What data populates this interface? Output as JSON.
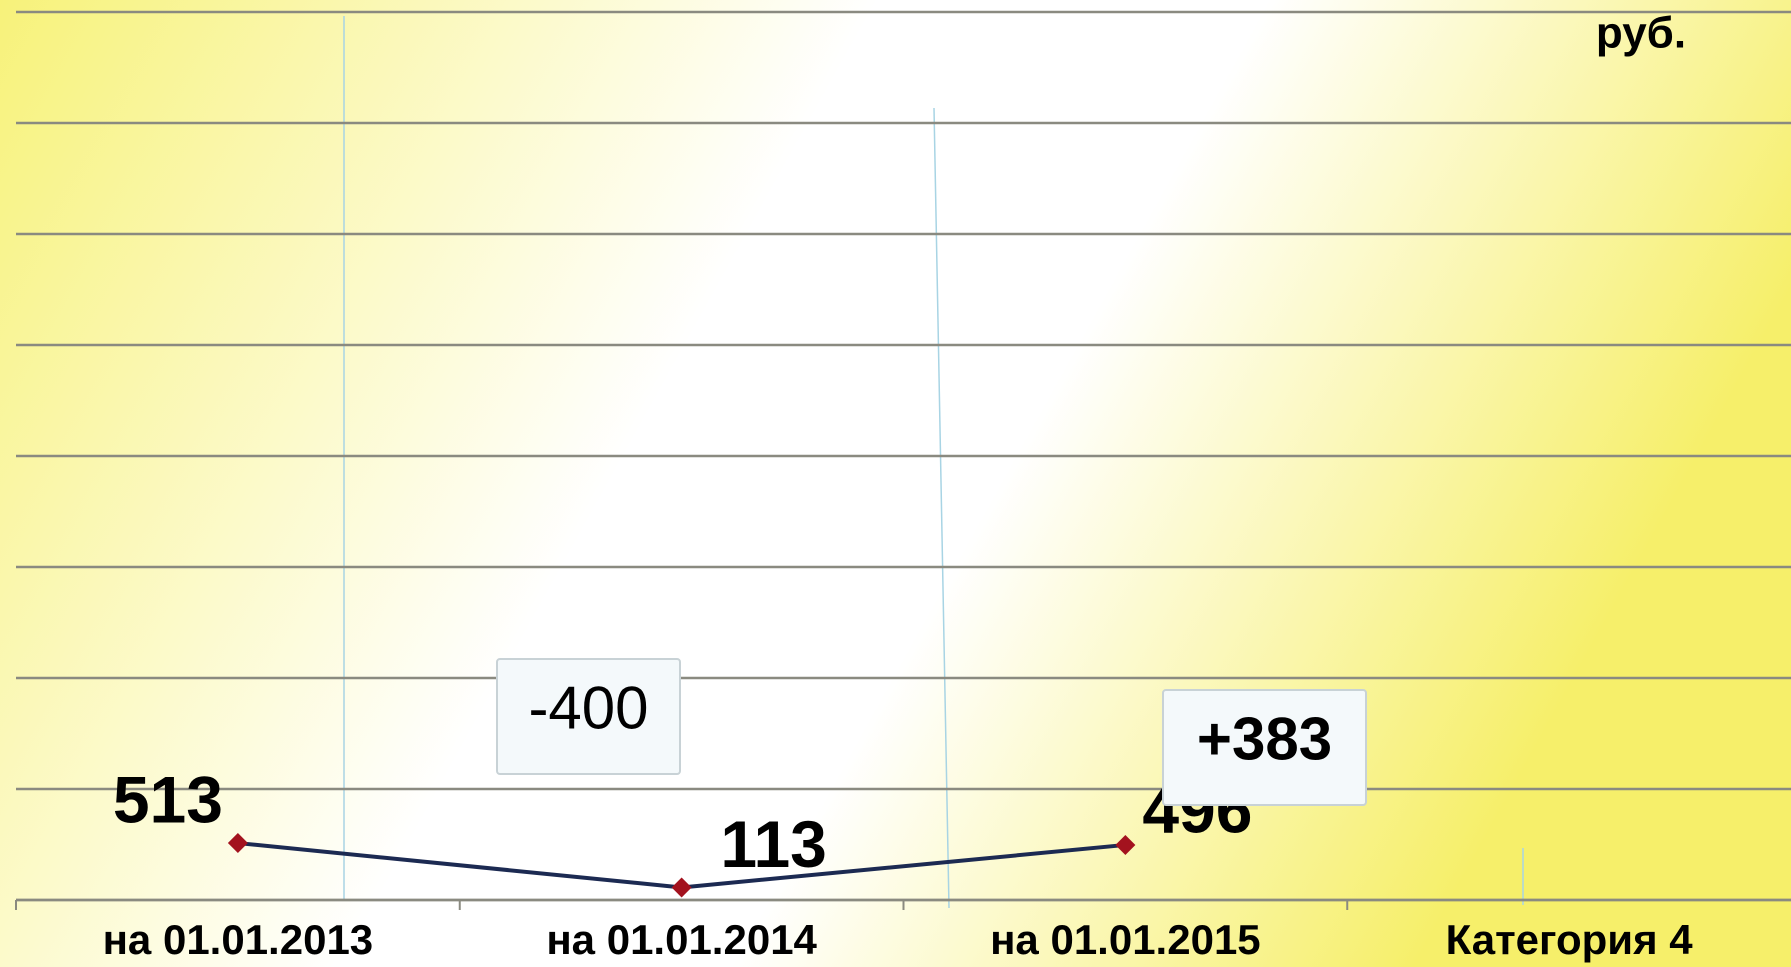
{
  "chart_data": {
    "type": "line",
    "unit_label": "руб.",
    "categories": [
      "на 01.01.2013",
      "на 01.01.2014",
      "на 01.01.2015",
      "Категория 4"
    ],
    "series": [
      {
        "color": "#1c2a52",
        "marker_color": "#a3121e",
        "values": [
          513,
          113,
          496,
          null
        ]
      }
    ],
    "ylim": [
      0,
      8000
    ],
    "yticks": [
      0,
      1000,
      2000,
      3000,
      4000,
      5000,
      6000,
      7000,
      8000
    ],
    "grid": true,
    "annotations": [
      "-400",
      "+383"
    ]
  }
}
